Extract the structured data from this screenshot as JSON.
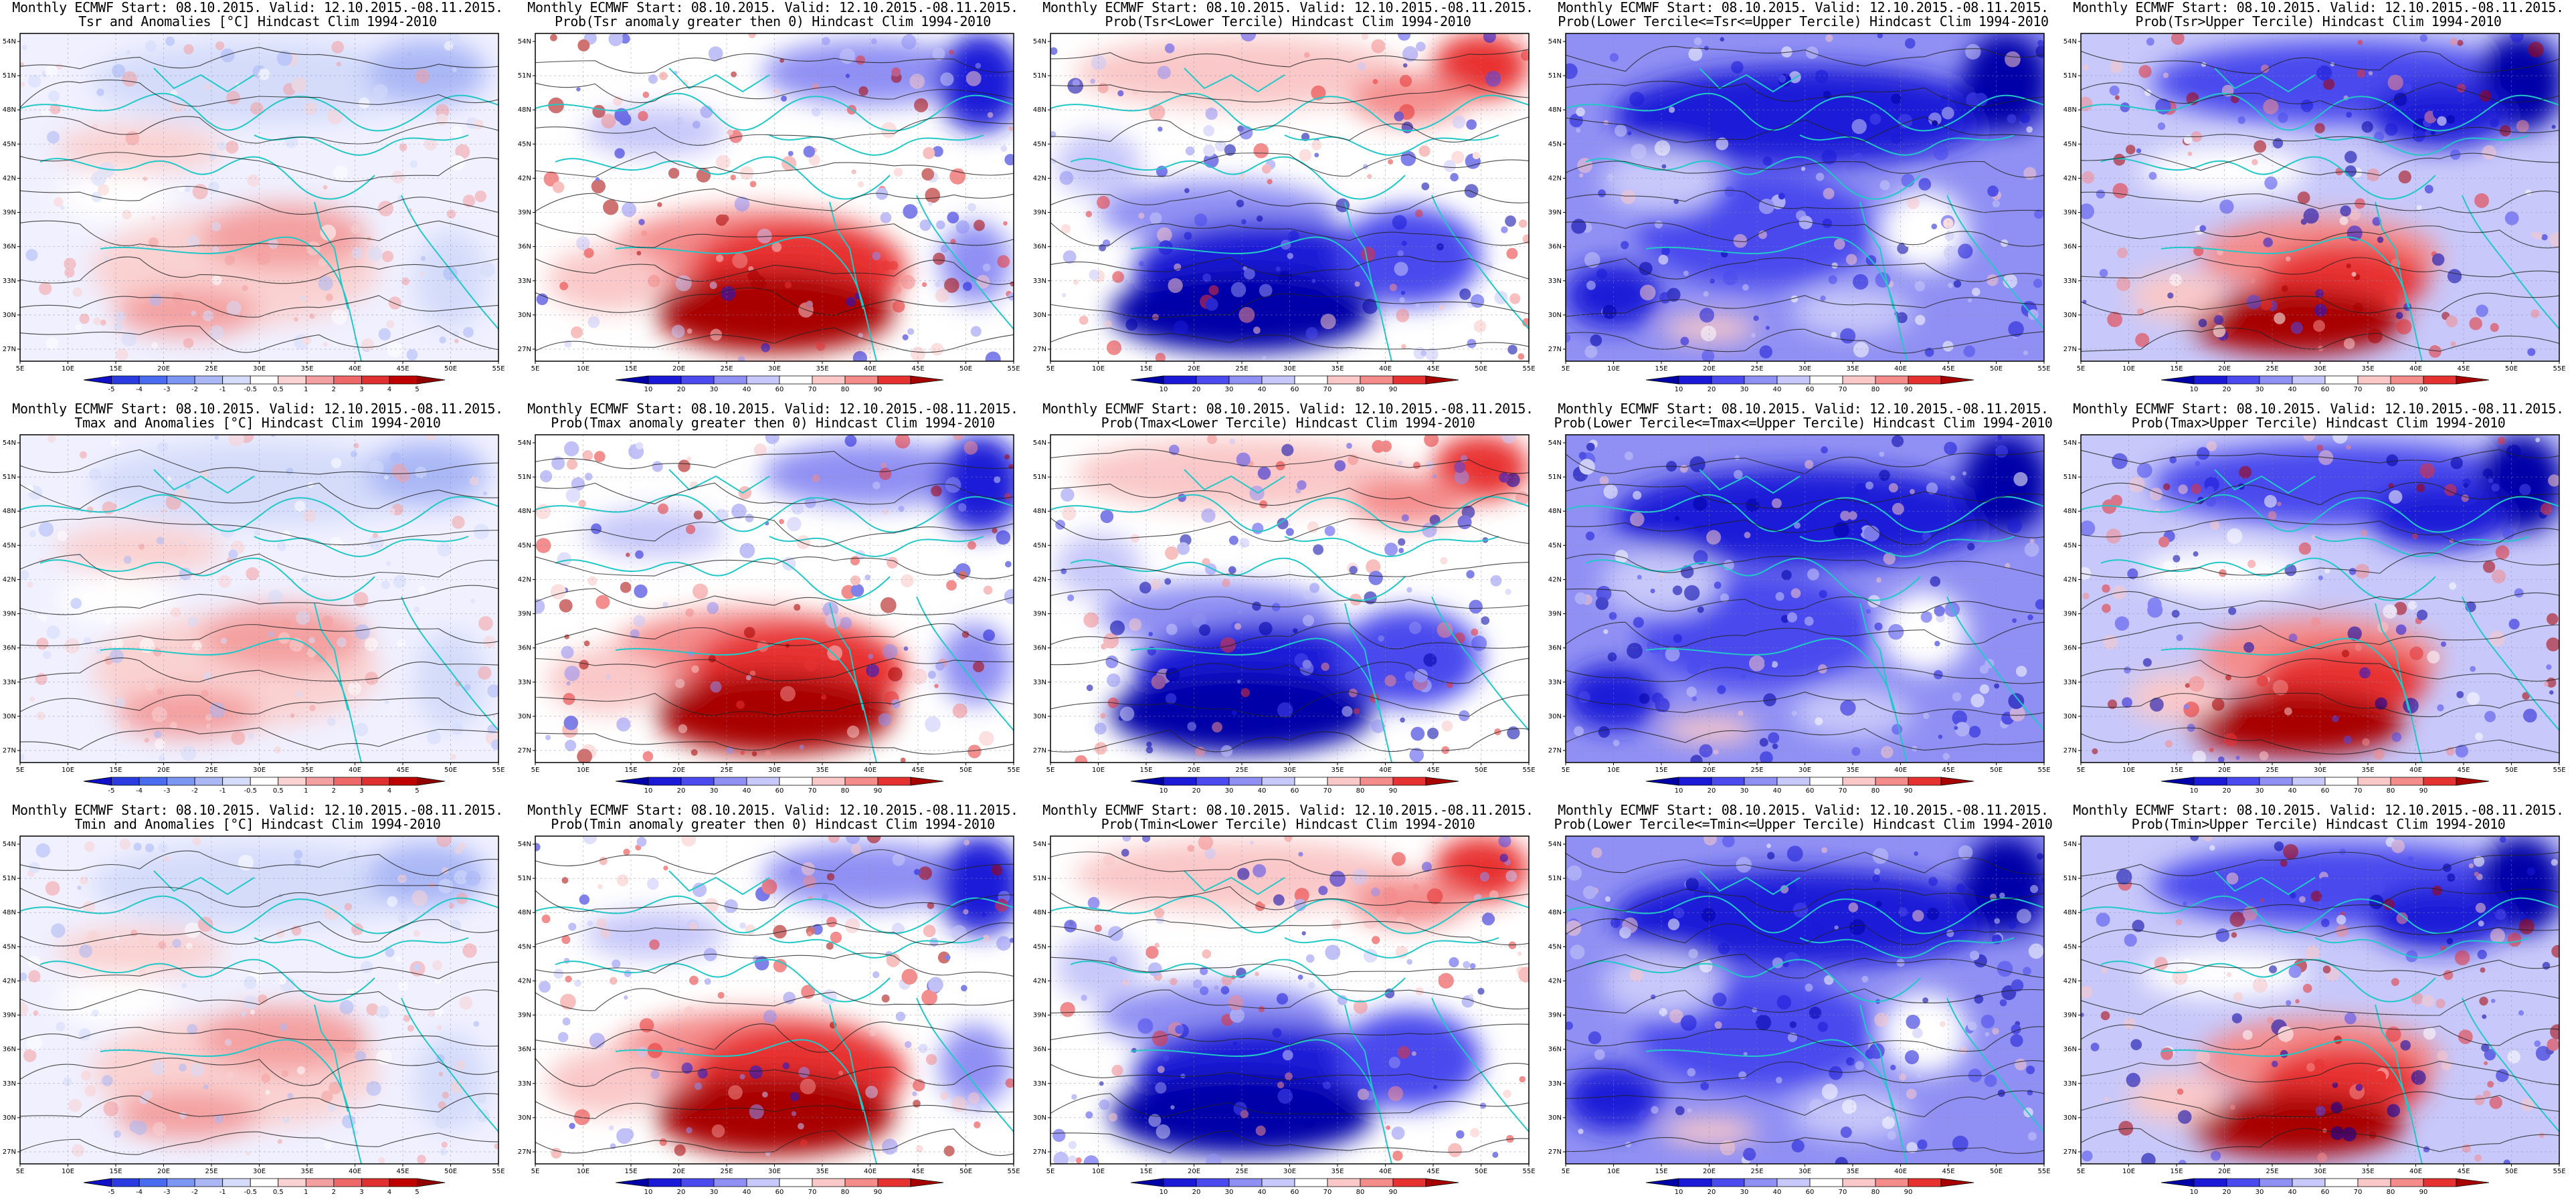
{
  "header_line": "Monthly ECMWF Start: 08.10.2015. Valid: 12.10.2015.-08.11.2015.",
  "axes": {
    "lon_labels": [
      "5E",
      "10E",
      "15E",
      "20E",
      "25E",
      "30E",
      "35E",
      "40E",
      "45E",
      "50E",
      "55E"
    ],
    "lat_labels": [
      "54N",
      "51N",
      "48N",
      "45N",
      "42N",
      "39N",
      "36N",
      "33N",
      "30N",
      "27N"
    ]
  },
  "colorbars": {
    "anomaly": {
      "ticks": [
        "-5",
        "-4",
        "-3",
        "-2",
        "-1",
        "-0.5",
        "0.5",
        "1",
        "2",
        "3",
        "4",
        "5"
      ],
      "colors": [
        "#1010c8",
        "#2a3ce0",
        "#4a6cf0",
        "#7c96f4",
        "#aab8f6",
        "#d4dcfa",
        "#ffffff",
        "#fad2d2",
        "#f4a0a0",
        "#ee6868",
        "#e03030",
        "#c00000",
        "#900000"
      ]
    },
    "prob": {
      "ticks": [
        "10",
        "20",
        "30",
        "40",
        "60",
        "70",
        "80",
        "90"
      ],
      "colors": [
        "#0000a8",
        "#1a1ad8",
        "#4a4aee",
        "#9090f4",
        "#c8c8fa",
        "#ffffff",
        "#fac8c8",
        "#f48c8c",
        "#e83232",
        "#a80000"
      ]
    }
  },
  "rows": [
    {
      "variable": "Tsr",
      "panels": [
        {
          "title": "Tsr and Anomalies [°C] Hindcast Clim 1994-2010",
          "colorbar": "anomaly",
          "pattern": "anom"
        },
        {
          "title": "Prob(Tsr anomaly greater then 0) Hindcast Clim 1994-2010",
          "colorbar": "prob",
          "pattern": "above"
        },
        {
          "title": "Prob(Tsr<Lower Tercile) Hindcast Clim 1994-2010",
          "colorbar": "prob",
          "pattern": "lower"
        },
        {
          "title": "Prob(Lower Tercile<=Tsr<=Upper Tercile) Hindcast Clim 1994-2010",
          "colorbar": "prob",
          "pattern": "middle"
        },
        {
          "title": "Prob(Tsr>Upper Tercile) Hindcast Clim 1994-2010",
          "colorbar": "prob",
          "pattern": "upper"
        }
      ]
    },
    {
      "variable": "Tmax",
      "panels": [
        {
          "title": "Tmax and Anomalies [°C] Hindcast Clim 1994-2010",
          "colorbar": "anomaly",
          "pattern": "anom"
        },
        {
          "title": "Prob(Tmax anomaly greater then 0) Hindcast Clim 1994-2010",
          "colorbar": "prob",
          "pattern": "above"
        },
        {
          "title": "Prob(Tmax<Lower Tercile) Hindcast Clim 1994-2010",
          "colorbar": "prob",
          "pattern": "lower"
        },
        {
          "title": "Prob(Lower Tercile<=Tmax<=Upper Tercile) Hindcast Clim 1994-2010",
          "colorbar": "prob",
          "pattern": "middle"
        },
        {
          "title": "Prob(Tmax>Upper Tercile) Hindcast Clim 1994-2010",
          "colorbar": "prob",
          "pattern": "upper"
        }
      ]
    },
    {
      "variable": "Tmin",
      "panels": [
        {
          "title": "Tmin and Anomalies [°C] Hindcast Clim 1994-2010",
          "colorbar": "anomaly",
          "pattern": "anom"
        },
        {
          "title": "Prob(Tmin anomaly greater then 0) Hindcast Clim 1994-2010",
          "colorbar": "prob",
          "pattern": "above"
        },
        {
          "title": "Prob(Tmin<Lower Tercile) Hindcast Clim 1994-2010",
          "colorbar": "prob",
          "pattern": "lower"
        },
        {
          "title": "Prob(Lower Tercile<=Tmin<=Upper Tercile) Hindcast Clim 1994-2010",
          "colorbar": "prob",
          "pattern": "middle"
        },
        {
          "title": "Prob(Tmin>Upper Tercile) Hindcast Clim 1994-2010",
          "colorbar": "prob",
          "pattern": "upper"
        }
      ]
    }
  ]
}
